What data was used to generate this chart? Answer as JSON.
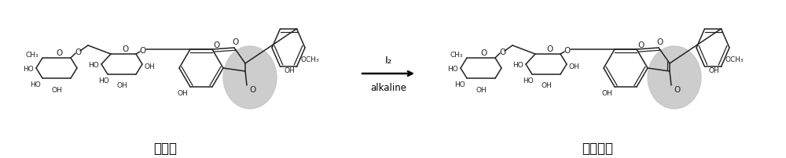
{
  "background_color": "#ffffff",
  "fig_width": 10.0,
  "fig_height": 2.03,
  "dpi": 100,
  "left_label": "橙皮苷",
  "right_label": "地奋司明",
  "arrow_label_top": "I₂",
  "arrow_label_bottom": "alkaline",
  "gray_ellipse_color": "#c8c8c8",
  "structure_color": "#222222",
  "line_width": 1.1
}
